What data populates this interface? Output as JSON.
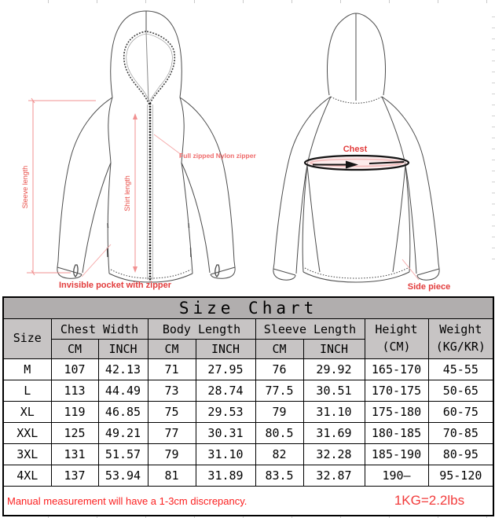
{
  "annotations": {
    "front": {
      "sleeve_length": "Sleeve length",
      "shirt_length": "Shirt length",
      "full_zipper": "Full zipped Nylon zipper",
      "invisible_pocket": "Invisible pocket with zipper"
    },
    "back": {
      "chest": "Chest",
      "side_piece": "Side piece"
    }
  },
  "colors": {
    "annotation_red": "#e8504a",
    "callout_red": "#e23c3c",
    "dim_line_red": "#f19090",
    "title_bar_gray": "#b1aeae",
    "header_gray": "#c7c4c4",
    "footer_red": "#fb2020",
    "outline_gray": "#4c4c4c"
  },
  "table": {
    "title": "Size Chart",
    "col_groups": [
      {
        "label": "Size"
      },
      {
        "label": "Chest Width",
        "units": [
          "CM",
          "INCH"
        ]
      },
      {
        "label": "Body Length",
        "units": [
          "CM",
          "INCH"
        ]
      },
      {
        "label": "Sleeve Length",
        "units": [
          "CM",
          "INCH"
        ]
      },
      {
        "label": "Height",
        "sub": "(CM)"
      },
      {
        "label": "Weight",
        "sub": "(KG/KR)"
      }
    ],
    "rows": [
      [
        "M",
        "107",
        "42.13",
        "71",
        "27.95",
        "76",
        "29.92",
        "165-170",
        "45-55"
      ],
      [
        "L",
        "113",
        "44.49",
        "73",
        "28.74",
        "77.5",
        "30.51",
        "170-175",
        "50-65"
      ],
      [
        "XL",
        "119",
        "46.85",
        "75",
        "29.53",
        "79",
        "31.10",
        "175-180",
        "60-75"
      ],
      [
        "XXL",
        "125",
        "49.21",
        "77",
        "30.31",
        "80.5",
        "31.69",
        "180-185",
        "70-85"
      ],
      [
        "3XL",
        "131",
        "51.57",
        "79",
        "31.10",
        "82",
        "32.28",
        "185-190",
        "80-95"
      ],
      [
        "4XL",
        "137",
        "53.94",
        "81",
        "31.89",
        "83.5",
        "32.87",
        "190—",
        "95-120"
      ]
    ],
    "footer": {
      "note": "Manual measurement will have a 1-3cm discrepancy.",
      "conversion": "1KG=2.2lbs"
    }
  }
}
